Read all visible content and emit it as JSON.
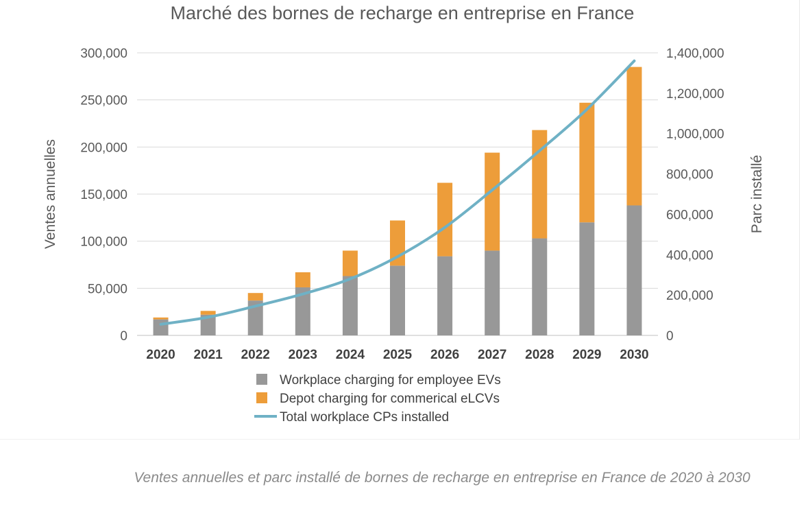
{
  "caption": "Ventes annuelles et parc installé de bornes de recharge en entreprise en France de 2020 à 2030",
  "colors": {
    "employee": "#989898",
    "depot": "#ED9D3A",
    "line": "#6FB1C5",
    "grid": "#D9D9D9",
    "text": "#595959"
  },
  "chart_data": {
    "type": "bar",
    "title": "Marché des bornes de recharge en entreprise en France",
    "ylabel": "Ventes annuelles",
    "y2label": "Parc installé",
    "ylim": [
      0,
      300000
    ],
    "y2lim": [
      0,
      1400000
    ],
    "yticks": [
      "0",
      "50,000",
      "100,000",
      "150,000",
      "200,000",
      "250,000",
      "300,000"
    ],
    "y2ticks": [
      "0",
      "200,000",
      "400,000",
      "600,000",
      "800,000",
      "1,000,000",
      "1,200,000",
      "1,400,000"
    ],
    "categories": [
      "2020",
      "2021",
      "2022",
      "2023",
      "2024",
      "2025",
      "2026",
      "2027",
      "2028",
      "2029",
      "2030"
    ],
    "stacked": true,
    "grid": true,
    "legend_position": "bottom",
    "series": [
      {
        "name": "Workplace charging for employee EVs",
        "axis": "left",
        "kind": "bar",
        "values": [
          17000,
          22000,
          37000,
          51000,
          63000,
          74000,
          84000,
          90000,
          103000,
          120000,
          138000
        ]
      },
      {
        "name": "Depot charging for commerical eLCVs",
        "axis": "left",
        "kind": "bar",
        "values": [
          2000,
          4000,
          8000,
          16000,
          27000,
          48000,
          78000,
          104000,
          115000,
          127000,
          147000
        ]
      },
      {
        "name": "Total workplace CPs installed",
        "axis": "right",
        "kind": "line",
        "values": [
          55000,
          90000,
          145000,
          205000,
          280000,
          390000,
          535000,
          720000,
          915000,
          1120000,
          1360000
        ]
      }
    ]
  }
}
